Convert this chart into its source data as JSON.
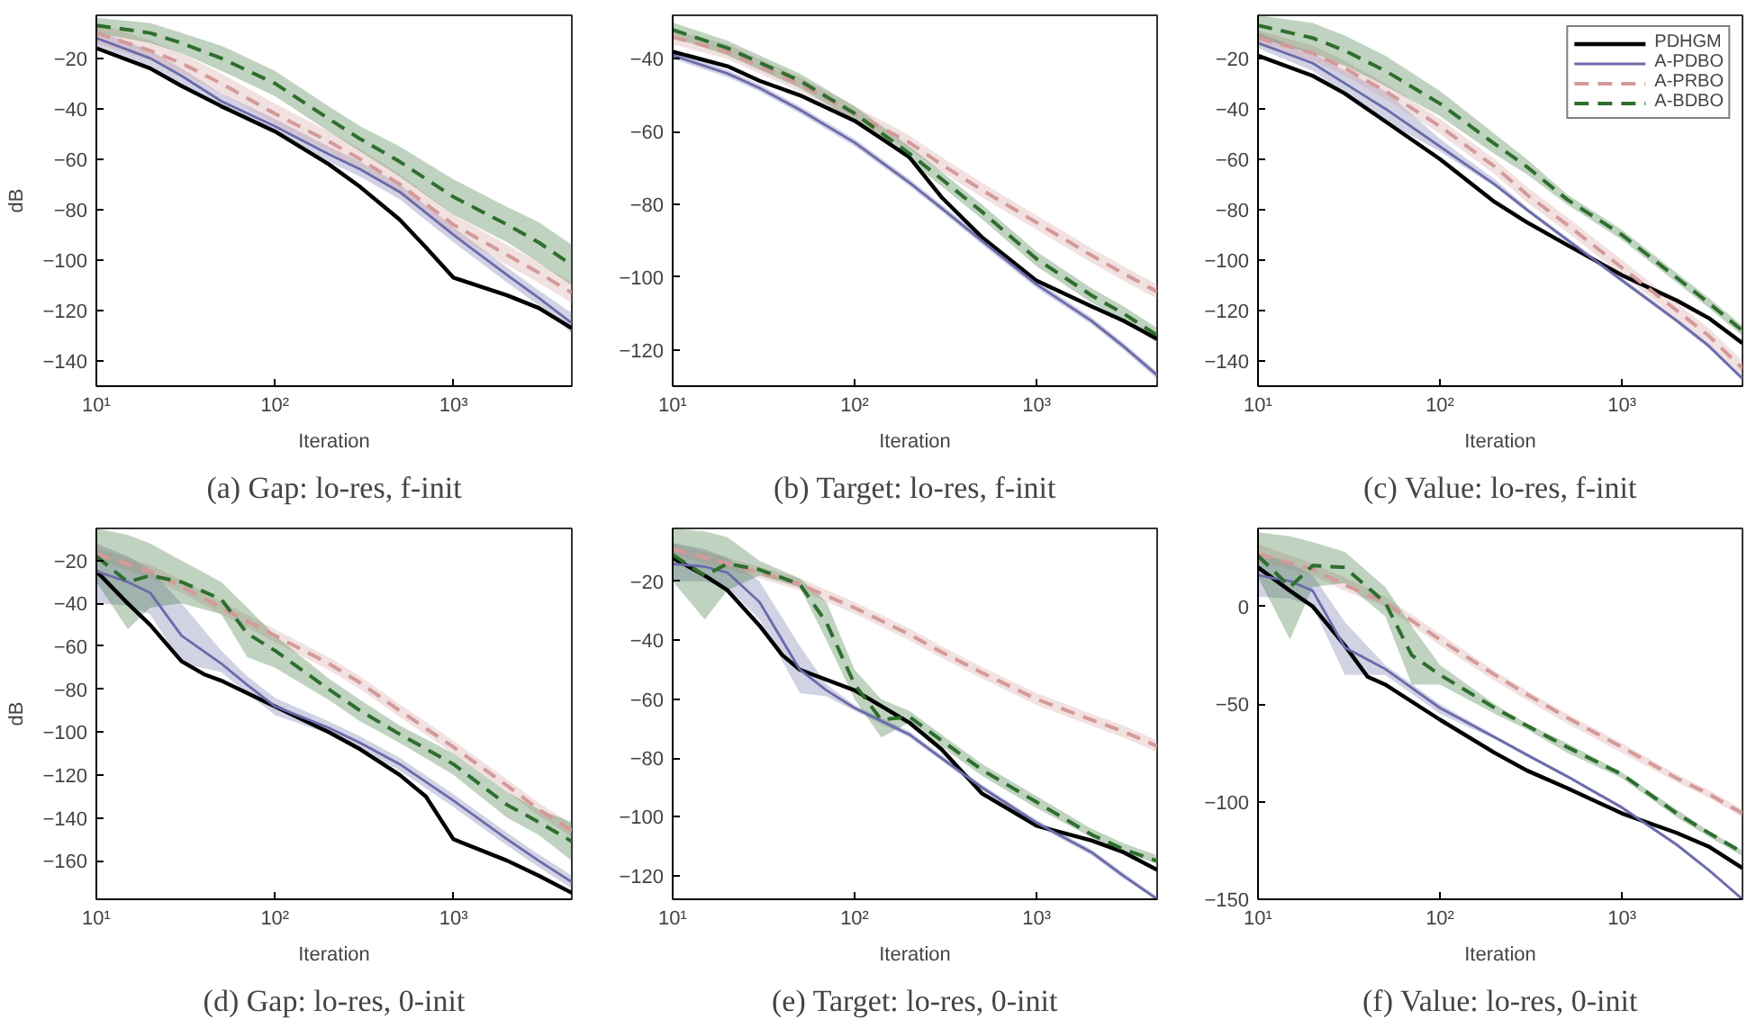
{
  "chart_data": [
    {
      "type": "line",
      "title": "(a) Gap: lo-res, f-init",
      "xlabel": "Iteration",
      "ylabel": "dB",
      "log": "x",
      "xlim": [
        10,
        4600
      ],
      "xticks": [
        {
          "value": 10,
          "label": "10¹"
        },
        {
          "value": 100,
          "label": "10²"
        },
        {
          "value": 1000,
          "label": "10³"
        }
      ],
      "ylim": [
        -150,
        -3
      ],
      "yticks": [
        -140,
        -120,
        -100,
        -80,
        -60,
        -40,
        -20
      ],
      "series": [
        {
          "color": "#000000",
          "line_style": "solid",
          "x": [
            10,
            20,
            30,
            50,
            100,
            200,
            300,
            500,
            700,
            1000,
            2000,
            3000,
            4600
          ],
          "values": [
            -16,
            -24,
            -31,
            -39,
            -49,
            -62,
            -71,
            -84,
            -95,
            -107,
            -114,
            -119,
            -127
          ]
        },
        {
          "color": "#6a6aaa",
          "line_style": "solid",
          "x": [
            10,
            20,
            30,
            50,
            100,
            200,
            300,
            500,
            1000,
            2000,
            3000,
            4600
          ],
          "values": [
            -12,
            -20,
            -27,
            -37,
            -47,
            -58,
            -64,
            -73,
            -90,
            -106,
            -115,
            -125
          ],
          "lower": [
            -15,
            -23,
            -30,
            -40,
            -50,
            -61,
            -67,
            -76,
            -93,
            -109,
            -118,
            -129
          ],
          "upper": [
            -9,
            -17,
            -24,
            -34,
            -44,
            -55,
            -61,
            -70,
            -87,
            -103,
            -112,
            -121
          ]
        },
        {
          "color": "#d49a9a",
          "line_style": "dashed",
          "x": [
            10,
            20,
            30,
            50,
            100,
            200,
            300,
            500,
            1000,
            2000,
            3000,
            4600
          ],
          "values": [
            -10,
            -17,
            -22,
            -30,
            -42,
            -53,
            -60,
            -70,
            -86,
            -98,
            -105,
            -113
          ],
          "lower": [
            -14,
            -21,
            -26,
            -34,
            -46,
            -57,
            -64,
            -74,
            -90,
            -102,
            -109,
            -117
          ],
          "upper": [
            -6,
            -13,
            -18,
            -26,
            -38,
            -49,
            -56,
            -66,
            -82,
            -94,
            -101,
            -109
          ]
        },
        {
          "color": "#2e6e2e",
          "line_style": "dashed",
          "x": [
            10,
            20,
            30,
            50,
            100,
            200,
            300,
            500,
            1000,
            2000,
            3000,
            4600
          ],
          "values": [
            -7,
            -10,
            -14,
            -20,
            -30,
            -44,
            -52,
            -61,
            -75,
            -86,
            -93,
            -102
          ],
          "lower": [
            -10,
            -14,
            -18,
            -25,
            -35,
            -49,
            -57,
            -67,
            -82,
            -93,
            -101,
            -110
          ],
          "upper": [
            -4,
            -6,
            -10,
            -15,
            -25,
            -39,
            -47,
            -55,
            -68,
            -79,
            -85,
            -94
          ]
        }
      ]
    },
    {
      "type": "line",
      "title": "(b) Target: lo-res, f-init",
      "xlabel": "Iteration",
      "log": "x",
      "xlim": [
        10,
        4600
      ],
      "xticks": [
        {
          "value": 10,
          "label": "10¹"
        },
        {
          "value": 100,
          "label": "10²"
        },
        {
          "value": 1000,
          "label": "10³"
        }
      ],
      "ylim": [
        -130,
        -28
      ],
      "yticks": [
        -120,
        -100,
        -80,
        -60,
        -40
      ],
      "series": [
        {
          "color": "#000000",
          "line_style": "solid",
          "x": [
            10,
            20,
            30,
            50,
            100,
            200,
            300,
            500,
            1000,
            2000,
            3000,
            4600
          ],
          "values": [
            -38,
            -42,
            -46,
            -50,
            -57,
            -67,
            -78,
            -89,
            -101,
            -108,
            -112,
            -117
          ]
        },
        {
          "color": "#6a6aaa",
          "line_style": "solid",
          "x": [
            10,
            20,
            30,
            50,
            100,
            200,
            300,
            500,
            1000,
            2000,
            3000,
            4600
          ],
          "values": [
            -39,
            -44,
            -48,
            -54,
            -63,
            -74,
            -81,
            -90,
            -102,
            -112,
            -119,
            -127
          ],
          "lower": [
            -40,
            -45,
            -49,
            -55,
            -64,
            -75,
            -82,
            -91,
            -103,
            -113,
            -120,
            -128
          ],
          "upper": [
            -38,
            -43,
            -47,
            -53,
            -62,
            -73,
            -80,
            -89,
            -101,
            -111,
            -118,
            -126
          ]
        },
        {
          "color": "#d49a9a",
          "line_style": "dashed",
          "x": [
            10,
            20,
            30,
            50,
            100,
            200,
            300,
            500,
            1000,
            2000,
            3000,
            4600
          ],
          "values": [
            -34,
            -38,
            -42,
            -47,
            -55,
            -63,
            -69,
            -76,
            -85,
            -94,
            -99,
            -104
          ],
          "lower": [
            -36,
            -40,
            -44,
            -49,
            -57,
            -65,
            -71,
            -78,
            -87,
            -96,
            -101,
            -106
          ],
          "upper": [
            -32,
            -36,
            -40,
            -45,
            -53,
            -61,
            -67,
            -74,
            -83,
            -92,
            -97,
            -102
          ]
        },
        {
          "color": "#2e6e2e",
          "line_style": "dashed",
          "x": [
            10,
            20,
            30,
            50,
            100,
            200,
            300,
            500,
            1000,
            2000,
            3000,
            4600
          ],
          "values": [
            -32,
            -37,
            -41,
            -46,
            -55,
            -66,
            -73,
            -82,
            -95,
            -105,
            -110,
            -116
          ],
          "lower": [
            -34,
            -39,
            -43,
            -48,
            -57,
            -68,
            -75,
            -84,
            -97,
            -107,
            -112,
            -118
          ],
          "upper": [
            -30,
            -35,
            -39,
            -44,
            -53,
            -64,
            -71,
            -80,
            -93,
            -103,
            -108,
            -114
          ]
        }
      ]
    },
    {
      "type": "line",
      "title": "(c) Value: lo-res, f-init",
      "xlabel": "Iteration",
      "log": "x",
      "legend": "top right",
      "xlim": [
        10,
        4600
      ],
      "xticks": [
        {
          "value": 10,
          "label": "10¹"
        },
        {
          "value": 100,
          "label": "10²"
        },
        {
          "value": 1000,
          "label": "10³"
        }
      ],
      "ylim": [
        -150,
        -3
      ],
      "yticks": [
        -140,
        -120,
        -100,
        -80,
        -60,
        -40,
        -20
      ],
      "series": [
        {
          "name": "PDHGM",
          "color": "#000000",
          "line_style": "solid",
          "x": [
            10,
            20,
            30,
            50,
            100,
            200,
            300,
            500,
            1000,
            2000,
            3000,
            4600
          ],
          "values": [
            -19,
            -27,
            -34,
            -45,
            -60,
            -77,
            -85,
            -94,
            -106,
            -116,
            -123,
            -133
          ]
        },
        {
          "name": "A-PDBO",
          "color": "#6a6aaa",
          "line_style": "solid",
          "x": [
            10,
            20,
            30,
            50,
            100,
            200,
            300,
            500,
            1000,
            2000,
            3000,
            4600
          ],
          "values": [
            -14,
            -22,
            -30,
            -40,
            -55,
            -70,
            -80,
            -92,
            -108,
            -124,
            -134,
            -147
          ],
          "lower": [
            -16,
            -25,
            -34,
            -45,
            -57,
            -71,
            -81,
            -93,
            -109,
            -125,
            -135,
            -148
          ],
          "upper": [
            -10,
            -18,
            -25,
            -33,
            -52,
            -68,
            -79,
            -91,
            -107,
            -123,
            -133,
            -146
          ]
        },
        {
          "name": "A-PRBO",
          "color": "#d49a9a",
          "line_style": "dashed",
          "x": [
            10,
            20,
            30,
            50,
            100,
            200,
            300,
            500,
            1000,
            2000,
            3000,
            4600
          ],
          "values": [
            -12,
            -18,
            -24,
            -33,
            -47,
            -63,
            -74,
            -86,
            -103,
            -120,
            -130,
            -143
          ],
          "lower": [
            -15,
            -21,
            -27,
            -36,
            -50,
            -66,
            -77,
            -89,
            -106,
            -123,
            -133,
            -146
          ],
          "upper": [
            -9,
            -15,
            -21,
            -30,
            -44,
            -60,
            -71,
            -83,
            -100,
            -117,
            -127,
            -140
          ]
        },
        {
          "name": "A-BDBO",
          "color": "#2e6e2e",
          "line_style": "dashed",
          "x": [
            10,
            20,
            30,
            50,
            100,
            200,
            300,
            500,
            1000,
            2000,
            3000,
            4600
          ],
          "values": [
            -7,
            -12,
            -17,
            -25,
            -38,
            -54,
            -63,
            -76,
            -90,
            -107,
            -117,
            -128
          ],
          "lower": [
            -12,
            -18,
            -23,
            -31,
            -43,
            -58,
            -66,
            -78,
            -92,
            -109,
            -119,
            -130
          ],
          "upper": [
            -3,
            -6,
            -11,
            -19,
            -33,
            -50,
            -60,
            -74,
            -88,
            -105,
            -115,
            -126
          ]
        }
      ]
    },
    {
      "type": "line",
      "title": "(d) Gap: lo-res, 0-init",
      "xlabel": "Iteration",
      "ylabel": "dB",
      "log": "x",
      "xlim": [
        10,
        4600
      ],
      "xticks": [
        {
          "value": 10,
          "label": "10¹"
        },
        {
          "value": 100,
          "label": "10²"
        },
        {
          "value": 1000,
          "label": "10³"
        }
      ],
      "ylim": [
        -178,
        -5
      ],
      "yticks": [
        -160,
        -140,
        -120,
        -100,
        -80,
        -60,
        -40,
        -20
      ],
      "series": [
        {
          "color": "#000000",
          "line_style": "solid",
          "x": [
            10,
            15,
            20,
            30,
            40,
            50,
            100,
            200,
            300,
            500,
            700,
            1000,
            2000,
            3000,
            4600
          ],
          "values": [
            -25,
            -40,
            -50,
            -67,
            -73,
            -76,
            -88,
            -100,
            -108,
            -120,
            -130,
            -150,
            -160,
            -167,
            -175
          ]
        },
        {
          "color": "#6a6aaa",
          "line_style": "solid",
          "x": [
            10,
            15,
            20,
            30,
            50,
            70,
            100,
            200,
            300,
            500,
            1000,
            2000,
            3000,
            4600
          ],
          "values": [
            -25,
            -30,
            -35,
            -55,
            -68,
            -78,
            -88,
            -98,
            -105,
            -115,
            -132,
            -150,
            -160,
            -170
          ],
          "lower": [
            -40,
            -41,
            -45,
            -68,
            -72,
            -82,
            -92,
            -101,
            -108,
            -118,
            -135,
            -153,
            -163,
            -173
          ],
          "upper": [
            -12,
            -18,
            -24,
            -40,
            -62,
            -74,
            -84,
            -95,
            -102,
            -112,
            -129,
            -147,
            -157,
            -167
          ]
        },
        {
          "color": "#d49a9a",
          "line_style": "dashed",
          "x": [
            10,
            20,
            30,
            50,
            100,
            200,
            300,
            500,
            1000,
            2000,
            3000,
            4600
          ],
          "values": [
            -17,
            -25,
            -32,
            -42,
            -55,
            -68,
            -77,
            -90,
            -107,
            -125,
            -136,
            -146
          ],
          "lower": [
            -20,
            -28,
            -35,
            -45,
            -58,
            -71,
            -80,
            -93,
            -110,
            -128,
            -139,
            -149
          ],
          "upper": [
            -14,
            -22,
            -29,
            -39,
            -52,
            -65,
            -74,
            -87,
            -104,
            -122,
            -133,
            -143
          ]
        },
        {
          "color": "#2e6e2e",
          "line_style": "dashed",
          "x": [
            10,
            15,
            20,
            30,
            50,
            70,
            100,
            200,
            300,
            500,
            1000,
            2000,
            3000,
            4600
          ],
          "values": [
            -18,
            -30,
            -27,
            -30,
            -38,
            -54,
            -62,
            -80,
            -90,
            -101,
            -115,
            -134,
            -142,
            -151
          ],
          "lower": [
            -30,
            -52,
            -42,
            -40,
            -45,
            -65,
            -70,
            -85,
            -95,
            -105,
            -120,
            -140,
            -148,
            -160
          ],
          "upper": [
            -5,
            -8,
            -12,
            -20,
            -30,
            -42,
            -55,
            -75,
            -85,
            -97,
            -110,
            -128,
            -136,
            -142
          ]
        }
      ]
    },
    {
      "type": "line",
      "title": "(e) Target: lo-res, 0-init",
      "xlabel": "Iteration",
      "log": "x",
      "xlim": [
        10,
        4600
      ],
      "xticks": [
        {
          "value": 10,
          "label": "10¹"
        },
        {
          "value": 100,
          "label": "10²"
        },
        {
          "value": 1000,
          "label": "10³"
        }
      ],
      "ylim": [
        -128,
        -2
      ],
      "yticks": [
        -120,
        -100,
        -80,
        -60,
        -40,
        -20
      ],
      "series": [
        {
          "color": "#000000",
          "line_style": "solid",
          "x": [
            10,
            15,
            20,
            30,
            40,
            50,
            100,
            200,
            300,
            500,
            1000,
            2000,
            3000,
            4600
          ],
          "values": [
            -12,
            -18,
            -23,
            -35,
            -45,
            -50,
            -57,
            -68,
            -77,
            -92,
            -103,
            -108,
            -112,
            -118
          ]
        },
        {
          "color": "#6a6aaa",
          "line_style": "solid",
          "x": [
            10,
            15,
            20,
            30,
            50,
            70,
            100,
            200,
            300,
            500,
            1000,
            2000,
            3000,
            4600
          ],
          "values": [
            -14,
            -15,
            -17,
            -27,
            -50,
            -57,
            -63,
            -72,
            -80,
            -90,
            -102,
            -112,
            -120,
            -128
          ],
          "lower": [
            -20,
            -20,
            -22,
            -33,
            -58,
            -59,
            -64,
            -73,
            -81,
            -91,
            -103,
            -113,
            -121,
            -128
          ],
          "upper": [
            -7,
            -9,
            -12,
            -20,
            -42,
            -55,
            -62,
            -71,
            -79,
            -89,
            -101,
            -111,
            -119,
            -127
          ]
        },
        {
          "color": "#d49a9a",
          "line_style": "dashed",
          "x": [
            10,
            20,
            30,
            50,
            100,
            200,
            300,
            500,
            1000,
            2000,
            3000,
            4600
          ],
          "values": [
            -9,
            -14,
            -17,
            -21,
            -29,
            -38,
            -44,
            -51,
            -60,
            -67,
            -71,
            -76
          ],
          "lower": [
            -11,
            -16,
            -19,
            -23,
            -31,
            -40,
            -46,
            -53,
            -62,
            -69,
            -73,
            -78
          ],
          "upper": [
            -7,
            -12,
            -15,
            -19,
            -27,
            -36,
            -42,
            -49,
            -58,
            -65,
            -69,
            -74
          ]
        },
        {
          "color": "#2e6e2e",
          "line_style": "dashed",
          "x": [
            10,
            15,
            20,
            30,
            50,
            70,
            100,
            140,
            200,
            300,
            500,
            1000,
            2000,
            3000,
            4600
          ],
          "values": [
            -11,
            -18,
            -14,
            -16,
            -21,
            -34,
            -55,
            -67,
            -66,
            -74,
            -84,
            -95,
            -106,
            -111,
            -115
          ],
          "lower": [
            -20,
            -33,
            -23,
            -18,
            -22,
            -40,
            -60,
            -73,
            -68,
            -76,
            -86,
            -97,
            -107,
            -112,
            -116
          ],
          "upper": [
            -2,
            -3,
            -5,
            -13,
            -19,
            -27,
            -50,
            -60,
            -64,
            -72,
            -82,
            -93,
            -104,
            -109,
            -113
          ]
        }
      ]
    },
    {
      "type": "line",
      "title": "(f) Value: lo-res, 0-init",
      "xlabel": "Iteration",
      "log": "x",
      "xlim": [
        10,
        4600
      ],
      "xticks": [
        {
          "value": 10,
          "label": "10¹"
        },
        {
          "value": 100,
          "label": "10²"
        },
        {
          "value": 1000,
          "label": "10³"
        }
      ],
      "ylim": [
        -150,
        40
      ],
      "yticks": [
        -150,
        -100,
        -50,
        0
      ],
      "series": [
        {
          "color": "#000000",
          "line_style": "solid",
          "x": [
            10,
            15,
            20,
            30,
            40,
            50,
            100,
            200,
            300,
            500,
            1000,
            2000,
            3000,
            4600
          ],
          "values": [
            20,
            8,
            0,
            -20,
            -36,
            -40,
            -58,
            -75,
            -84,
            -93,
            -106,
            -116,
            -123,
            -134
          ]
        },
        {
          "color": "#6a6aaa",
          "line_style": "solid",
          "x": [
            10,
            15,
            20,
            30,
            50,
            100,
            200,
            300,
            500,
            1000,
            2000,
            3000,
            4600
          ],
          "values": [
            16,
            13,
            8,
            -21,
            -32,
            -52,
            -67,
            -76,
            -87,
            -103,
            -122,
            -135,
            -150
          ],
          "lower": [
            5,
            4,
            0,
            -35,
            -35,
            -55,
            -68,
            -77,
            -88,
            -104,
            -123,
            -136,
            -150
          ],
          "upper": [
            28,
            22,
            16,
            -8,
            -30,
            -50,
            -66,
            -75,
            -86,
            -102,
            -121,
            -134,
            -149
          ]
        },
        {
          "color": "#d49a9a",
          "line_style": "dashed",
          "x": [
            10,
            20,
            30,
            50,
            100,
            200,
            300,
            500,
            1000,
            2000,
            3000,
            4600
          ],
          "values": [
            27,
            19,
            11,
            2,
            -17,
            -35,
            -45,
            -57,
            -72,
            -88,
            -96,
            -106
          ],
          "lower": [
            23,
            16,
            8,
            0,
            -20,
            -38,
            -48,
            -60,
            -75,
            -90,
            -98,
            -108
          ],
          "upper": [
            32,
            22,
            15,
            5,
            -14,
            -33,
            -43,
            -55,
            -70,
            -86,
            -94,
            -104
          ]
        },
        {
          "color": "#2e6e2e",
          "line_style": "dashed",
          "x": [
            10,
            15,
            20,
            30,
            50,
            70,
            100,
            200,
            300,
            500,
            1000,
            2000,
            3000,
            4600
          ],
          "values": [
            26,
            10,
            21,
            20,
            2,
            -25,
            -35,
            -52,
            -61,
            -72,
            -86,
            -106,
            -116,
            -126
          ],
          "lower": [
            15,
            -17,
            10,
            12,
            -5,
            -40,
            -40,
            -55,
            -63,
            -75,
            -88,
            -108,
            -118,
            -128
          ],
          "upper": [
            38,
            36,
            33,
            28,
            10,
            -10,
            -30,
            -50,
            -60,
            -70,
            -85,
            -104,
            -115,
            -125
          ]
        }
      ]
    }
  ]
}
